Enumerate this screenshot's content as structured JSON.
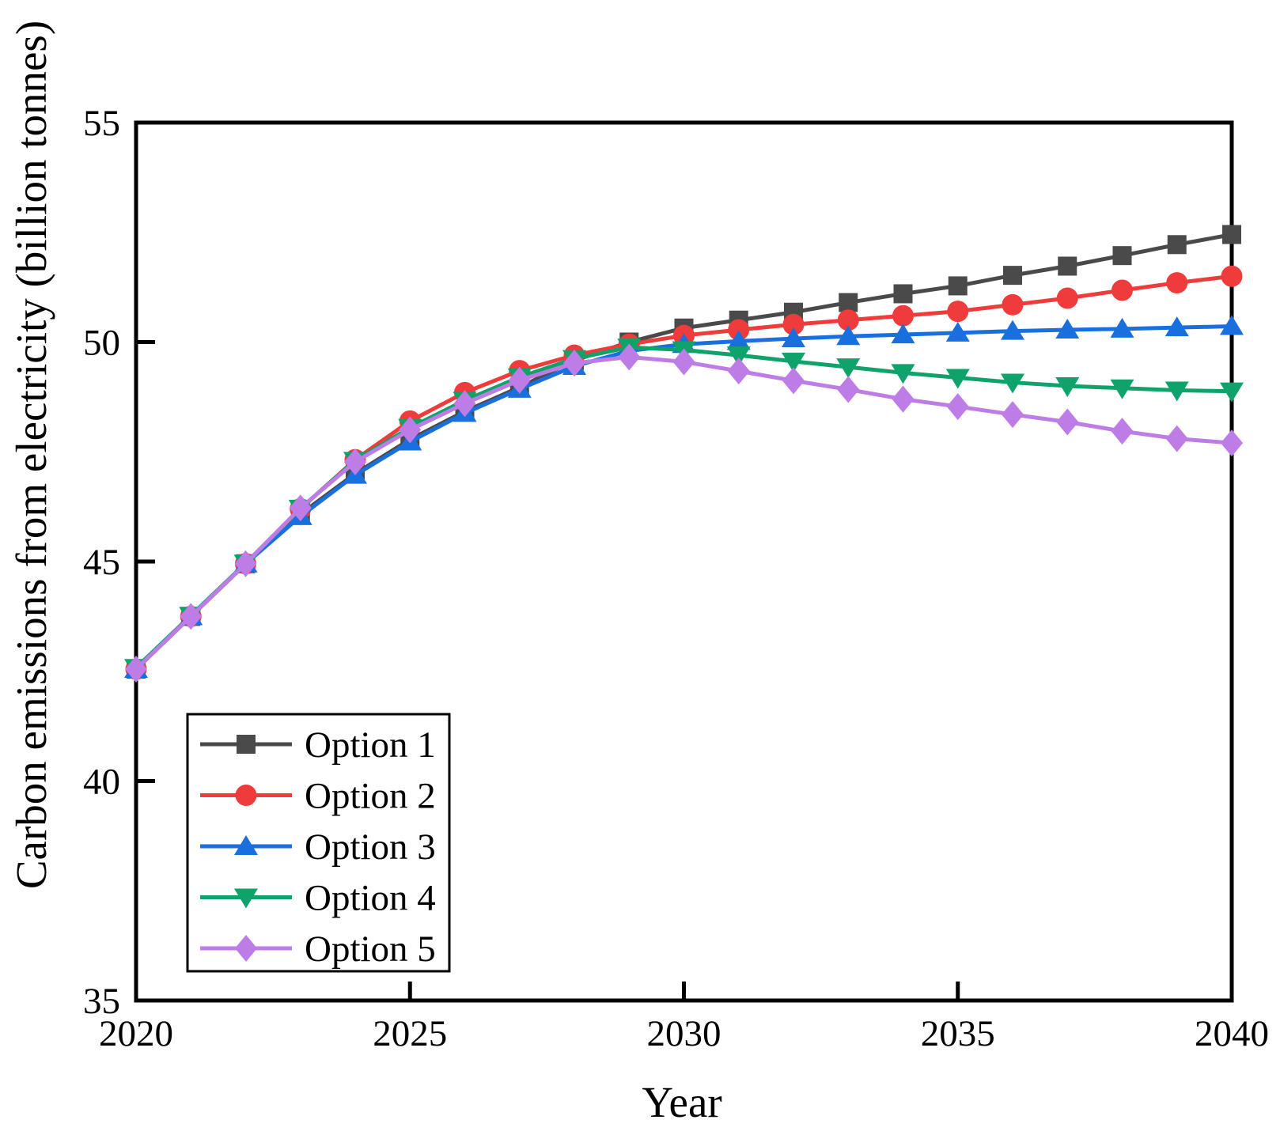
{
  "chart_data": {
    "type": "line",
    "title": "",
    "xlabel": "Year",
    "ylabel": "Carbon emissions from electricity (billion tonnes)",
    "xlim": [
      2020,
      2040
    ],
    "ylim": [
      35,
      55
    ],
    "xticks": [
      2020,
      2025,
      2030,
      2035,
      2040
    ],
    "yticks": [
      35,
      40,
      45,
      50,
      55
    ],
    "grid": false,
    "legend_position": "lower-left",
    "axis_color": "#000000",
    "x": [
      2020,
      2021,
      2022,
      2023,
      2024,
      2025,
      2026,
      2027,
      2028,
      2029,
      2030,
      2031,
      2032,
      2033,
      2034,
      2035,
      2036,
      2037,
      2038,
      2039,
      2040
    ],
    "series": [
      {
        "name": "Option 1",
        "color": "#4a4a4a",
        "marker": "square",
        "values": [
          42.55,
          43.75,
          44.95,
          46.08,
          47.0,
          47.78,
          48.42,
          48.97,
          49.58,
          50.0,
          50.32,
          50.5,
          50.68,
          50.9,
          51.1,
          51.28,
          51.52,
          51.73,
          51.97,
          52.22,
          52.45
        ]
      },
      {
        "name": "Option 2",
        "color": "#ef3b3b",
        "marker": "circle",
        "values": [
          42.55,
          43.75,
          44.95,
          46.2,
          47.32,
          48.2,
          48.85,
          49.35,
          49.7,
          49.95,
          50.15,
          50.28,
          50.4,
          50.5,
          50.6,
          50.7,
          50.85,
          51.0,
          51.18,
          51.35,
          51.5
        ]
      },
      {
        "name": "Option 3",
        "color": "#1a6fdf",
        "marker": "triangle-up",
        "values": [
          42.55,
          43.75,
          44.95,
          46.03,
          46.97,
          47.73,
          48.38,
          48.93,
          49.45,
          49.8,
          49.95,
          50.02,
          50.08,
          50.13,
          50.17,
          50.21,
          50.25,
          50.28,
          50.3,
          50.33,
          50.36
        ]
      },
      {
        "name": "Option 4",
        "color": "#0fa36b",
        "marker": "triangle-down",
        "values": [
          42.58,
          43.77,
          44.96,
          46.21,
          47.3,
          48.05,
          48.67,
          49.2,
          49.62,
          49.88,
          49.82,
          49.7,
          49.56,
          49.43,
          49.3,
          49.19,
          49.08,
          49.0,
          48.95,
          48.9,
          48.88
        ]
      },
      {
        "name": "Option 5",
        "color": "#be7de6",
        "marker": "diamond",
        "values": [
          42.55,
          43.75,
          44.95,
          46.22,
          47.27,
          48.0,
          48.6,
          49.13,
          49.52,
          49.66,
          49.55,
          49.34,
          49.12,
          48.92,
          48.7,
          48.53,
          48.35,
          48.18,
          47.97,
          47.8,
          47.7
        ]
      }
    ]
  }
}
